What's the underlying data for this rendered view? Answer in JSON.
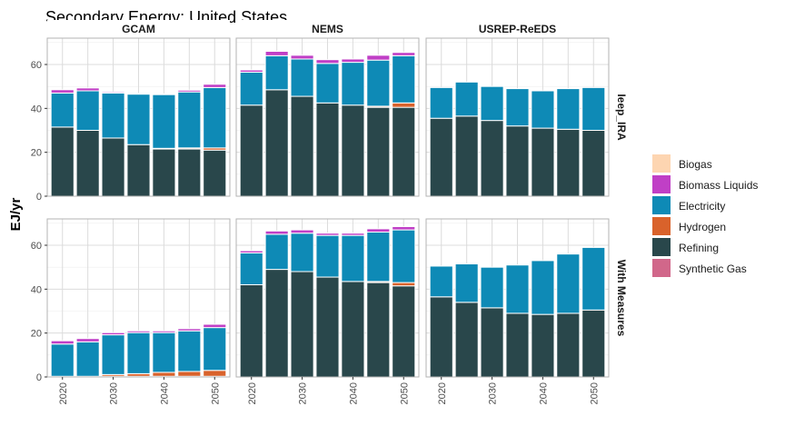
{
  "chart_data": {
    "type": "bar",
    "stacked": true,
    "title": "Secondary Energy: United States",
    "ylabel": "EJ/yr",
    "xlabel": "",
    "x": [
      2020,
      2025,
      2030,
      2035,
      2040,
      2045,
      2050
    ],
    "x_ticks": [
      "2020",
      "2030",
      "2040",
      "2050"
    ],
    "ylim": [
      0,
      72
    ],
    "y_ticks": [
      "0",
      "20",
      "40",
      "60"
    ],
    "grid": true,
    "legend_position": "right",
    "columns": [
      "GCAM",
      "NEMS",
      "USREP-ReEDS"
    ],
    "rows": [
      "Ieep_IRA",
      "With Measures"
    ],
    "series_order": [
      "Refining",
      "Hydrogen",
      "Electricity",
      "Biomass Liquids",
      "Biogas",
      "Synthetic Gas"
    ],
    "legend": [
      {
        "name": "Biogas",
        "color": "#FDD5B1"
      },
      {
        "name": "Biomass Liquids",
        "color": "#C03FC6"
      },
      {
        "name": "Electricity",
        "color": "#0E8AB6"
      },
      {
        "name": "Hydrogen",
        "color": "#D9622B"
      },
      {
        "name": "Refining",
        "color": "#29474B"
      },
      {
        "name": "Synthetic Gas",
        "color": "#D1678A"
      }
    ],
    "panels": [
      {
        "row": 0,
        "col": 0,
        "series": {
          "Refining": [
            31.5,
            30.0,
            26.5,
            23.5,
            21.5,
            21.5,
            21.0
          ],
          "Hydrogen": [
            0,
            0,
            0,
            0,
            0.3,
            0.5,
            1.0
          ],
          "Electricity": [
            15.5,
            18.0,
            20.5,
            23.0,
            24.5,
            25.5,
            27.5
          ],
          "Biomass Liquids": [
            1.5,
            1.3,
            0.5,
            0.3,
            0.3,
            0.8,
            1.5
          ],
          "Biogas": [
            0,
            0,
            0,
            0,
            0,
            0,
            0
          ],
          "Synthetic Gas": [
            0,
            0,
            0,
            0,
            0,
            0,
            0
          ]
        }
      },
      {
        "row": 0,
        "col": 1,
        "series": {
          "Refining": [
            41.5,
            48.5,
            45.5,
            42.5,
            41.5,
            40.5,
            40.5
          ],
          "Hydrogen": [
            0,
            0,
            0,
            0,
            0,
            0.5,
            2.0
          ],
          "Electricity": [
            15.0,
            15.5,
            17.0,
            18.0,
            19.5,
            21.0,
            21.5
          ],
          "Biomass Liquids": [
            1.0,
            2.0,
            1.7,
            1.7,
            1.5,
            2.2,
            1.5
          ],
          "Biogas": [
            0,
            0,
            0,
            0,
            0,
            0,
            0
          ],
          "Synthetic Gas": [
            0,
            0,
            0,
            0,
            0,
            0,
            0
          ]
        }
      },
      {
        "row": 0,
        "col": 2,
        "series": {
          "Refining": [
            35.5,
            36.5,
            34.5,
            32.0,
            31.0,
            30.5,
            30.0
          ],
          "Hydrogen": [
            0,
            0,
            0,
            0,
            0,
            0,
            0
          ],
          "Electricity": [
            14.0,
            15.5,
            15.5,
            17.0,
            17.0,
            18.5,
            19.5
          ],
          "Biomass Liquids": [
            0,
            0,
            0,
            0,
            0,
            0,
            0
          ],
          "Biogas": [
            0,
            0,
            0,
            0,
            0,
            0,
            0
          ],
          "Synthetic Gas": [
            0,
            0,
            0,
            0,
            0,
            0,
            0
          ]
        }
      },
      {
        "row": 1,
        "col": 0,
        "series": {
          "Refining": [
            0.3,
            0.3,
            0.3,
            0.3,
            0.3,
            0.3,
            0.3
          ],
          "Hydrogen": [
            0,
            0,
            0.8,
            1.2,
            1.8,
            2.2,
            2.7
          ],
          "Electricity": [
            14.7,
            15.7,
            18.1,
            18.7,
            18.1,
            18.5,
            19.5
          ],
          "Biomass Liquids": [
            1.5,
            1.5,
            1.0,
            0.8,
            0.8,
            1.0,
            1.5
          ],
          "Biogas": [
            0,
            0,
            0,
            0,
            0,
            0,
            0
          ],
          "Synthetic Gas": [
            0,
            0,
            0,
            0,
            0,
            0,
            0
          ]
        }
      },
      {
        "row": 1,
        "col": 1,
        "series": {
          "Refining": [
            42.0,
            49.0,
            48.0,
            45.5,
            43.5,
            43.0,
            41.5
          ],
          "Hydrogen": [
            0,
            0,
            0,
            0,
            0,
            0.5,
            1.5
          ],
          "Electricity": [
            14.5,
            16.0,
            17.5,
            19.0,
            21.0,
            22.5,
            24.0
          ],
          "Biomass Liquids": [
            1.0,
            1.5,
            1.5,
            1.0,
            1.0,
            1.5,
            1.5
          ],
          "Biogas": [
            0,
            0,
            0,
            0,
            0,
            0,
            0
          ],
          "Synthetic Gas": [
            0,
            0,
            0,
            0,
            0,
            0,
            0
          ]
        }
      },
      {
        "row": 1,
        "col": 2,
        "series": {
          "Refining": [
            36.5,
            34.0,
            31.5,
            29.0,
            28.5,
            29.0,
            30.5
          ],
          "Hydrogen": [
            0,
            0,
            0,
            0,
            0,
            0,
            0
          ],
          "Electricity": [
            14.0,
            17.5,
            18.5,
            22.0,
            24.5,
            27.0,
            28.5
          ],
          "Biomass Liquids": [
            0,
            0,
            0,
            0,
            0,
            0,
            0
          ],
          "Biogas": [
            0,
            0,
            0,
            0,
            0,
            0,
            0
          ],
          "Synthetic Gas": [
            0,
            0,
            0,
            0,
            0,
            0,
            0
          ]
        }
      }
    ]
  }
}
